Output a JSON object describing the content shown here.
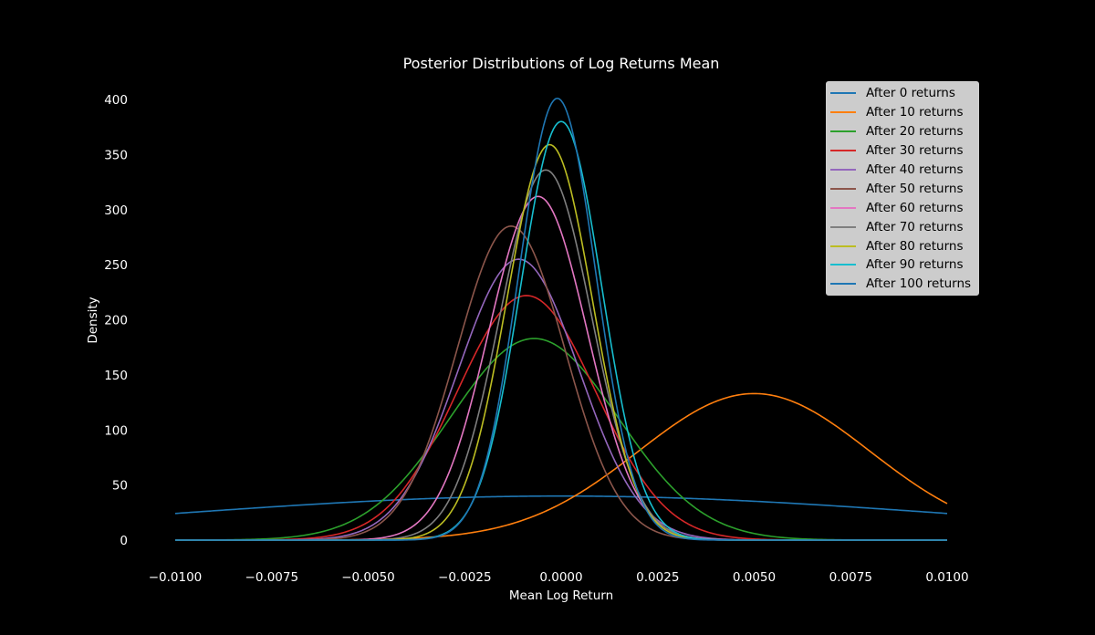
{
  "chart_data": {
    "type": "line",
    "title": "Posterior Distributions of Log Returns Mean",
    "xlabel": "Mean Log Return",
    "ylabel": "Density",
    "xlim": [
      -0.01,
      0.01
    ],
    "ylim": [
      0,
      400
    ],
    "x_ticks": [
      -0.01,
      -0.0075,
      -0.005,
      -0.0025,
      0.0,
      0.0025,
      0.005,
      0.0075,
      0.01
    ],
    "x_tick_labels": [
      "−0.0100",
      "−0.0075",
      "−0.0050",
      "−0.0025",
      "0.0000",
      "0.0025",
      "0.0050",
      "0.0075",
      "0.0100"
    ],
    "y_ticks": [
      0,
      50,
      100,
      150,
      200,
      250,
      300,
      350,
      400
    ],
    "y_tick_labels": [
      "0",
      "50",
      "100",
      "150",
      "200",
      "250",
      "300",
      "350",
      "400"
    ],
    "grid": false,
    "legend_position": "top-right",
    "background": "#000000",
    "series": [
      {
        "name": "After 0 returns",
        "color": "#1f77b4",
        "mean": 0.0,
        "peak": 40
      },
      {
        "name": "After 10 returns",
        "color": "#ff7f0e",
        "mean": 0.005,
        "peak": 133
      },
      {
        "name": "After 20 returns",
        "color": "#2ca02c",
        "mean": -0.0007,
        "peak": 183
      },
      {
        "name": "After 30 returns",
        "color": "#d62728",
        "mean": -0.0009,
        "peak": 222
      },
      {
        "name": "After 40 returns",
        "color": "#9467bd",
        "mean": -0.0011,
        "peak": 255
      },
      {
        "name": "After 50 returns",
        "color": "#8c564b",
        "mean": -0.0013,
        "peak": 285
      },
      {
        "name": "After 60 returns",
        "color": "#e377c2",
        "mean": -0.0006,
        "peak": 312
      },
      {
        "name": "After 70 returns",
        "color": "#7f7f7f",
        "mean": -0.0004,
        "peak": 336
      },
      {
        "name": "After 80 returns",
        "color": "#bcbd22",
        "mean": -0.0003,
        "peak": 359
      },
      {
        "name": "After 90 returns",
        "color": "#17becf",
        "mean": 0.0,
        "peak": 380
      },
      {
        "name": "After 100 returns",
        "color": "#1f77b4",
        "mean": -0.0001,
        "peak": 401
      }
    ]
  }
}
